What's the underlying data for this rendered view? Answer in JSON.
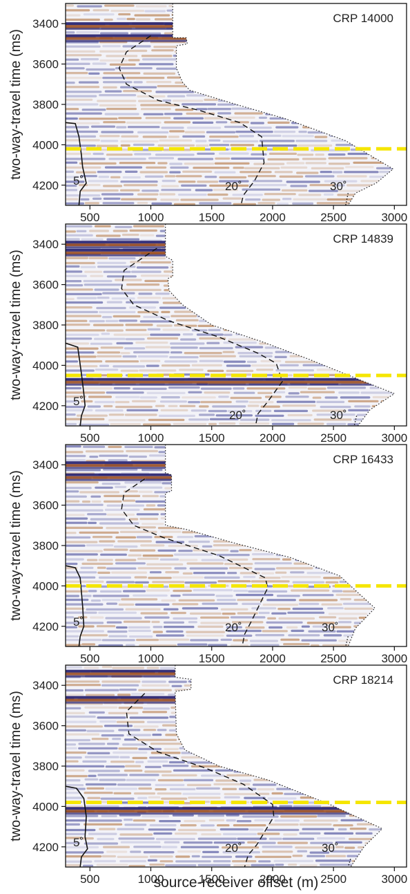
{
  "figure": {
    "xlabel": "source-receiver offset (m)"
  },
  "chart_data": [
    {
      "type": "heatmap",
      "title": "CRP 14000",
      "ylabel": "two-way-travel time (ms)",
      "xlim": [
        300,
        3100
      ],
      "ylim": [
        3300,
        4300
      ],
      "xticks": [
        500,
        1000,
        1500,
        2000,
        2500,
        3000
      ],
      "yticks": [
        3400,
        3600,
        3800,
        4000,
        4200
      ],
      "reference_time_ms": 4020,
      "strong_reflector_times_ms": [
        3410,
        3470
      ],
      "angle_labels": [
        "5˚",
        "20˚",
        "30˚"
      ],
      "data_boundary": [
        [
          1180,
          3300
        ],
        [
          1180,
          3470
        ],
        [
          1290,
          3470
        ],
        [
          1300,
          3500
        ],
        [
          1210,
          3510
        ],
        [
          1210,
          3620
        ],
        [
          1260,
          3690
        ],
        [
          1320,
          3730
        ],
        [
          1700,
          3800
        ],
        [
          2100,
          3870
        ],
        [
          2600,
          3980
        ],
        [
          2990,
          4120
        ],
        [
          2850,
          4190
        ],
        [
          2680,
          4240
        ],
        [
          2620,
          4300
        ]
      ],
      "angle_5_curve": [
        [
          300,
          3890
        ],
        [
          380,
          3895
        ],
        [
          410,
          3960
        ],
        [
          430,
          4050
        ],
        [
          440,
          4110
        ],
        [
          470,
          4190
        ],
        [
          420,
          4230
        ],
        [
          410,
          4300
        ]
      ],
      "angle_20_curve": [
        [
          1000,
          3460
        ],
        [
          800,
          3540
        ],
        [
          740,
          3620
        ],
        [
          800,
          3700
        ],
        [
          1060,
          3780
        ],
        [
          1400,
          3830
        ],
        [
          1730,
          3890
        ],
        [
          1910,
          3960
        ],
        [
          1930,
          4090
        ],
        [
          1850,
          4180
        ],
        [
          1760,
          4250
        ],
        [
          1740,
          4300
        ]
      ],
      "angle_30_curve": [
        [
          2620,
          4240
        ],
        [
          2600,
          4300
        ]
      ]
    },
    {
      "type": "heatmap",
      "title": "CRP 14839",
      "ylabel": "two-way-travel time (ms)",
      "xlim": [
        300,
        3100
      ],
      "ylim": [
        3300,
        4300
      ],
      "xticks": [
        500,
        1000,
        1500,
        2000,
        2500,
        3000
      ],
      "yticks": [
        3400,
        3600,
        3800,
        4000,
        4200
      ],
      "reference_time_ms": 4050,
      "strong_reflector_times_ms": [
        3400,
        3440,
        4080
      ],
      "angle_labels": [
        "5˚",
        "20˚",
        "30˚"
      ],
      "data_boundary": [
        [
          1120,
          3300
        ],
        [
          1120,
          3460
        ],
        [
          1180,
          3480
        ],
        [
          1180,
          3560
        ],
        [
          1140,
          3570
        ],
        [
          1150,
          3630
        ],
        [
          1260,
          3700
        ],
        [
          1500,
          3800
        ],
        [
          1900,
          3880
        ],
        [
          2300,
          3970
        ],
        [
          2750,
          4080
        ],
        [
          3000,
          4140
        ],
        [
          2800,
          4220
        ],
        [
          2700,
          4300
        ]
      ],
      "angle_5_curve": [
        [
          300,
          3890
        ],
        [
          400,
          3910
        ],
        [
          430,
          4040
        ],
        [
          450,
          4140
        ],
        [
          460,
          4200
        ],
        [
          430,
          4250
        ],
        [
          420,
          4300
        ]
      ],
      "angle_20_curve": [
        [
          1050,
          3420
        ],
        [
          780,
          3530
        ],
        [
          760,
          3620
        ],
        [
          860,
          3700
        ],
        [
          1150,
          3780
        ],
        [
          1560,
          3860
        ],
        [
          1880,
          3940
        ],
        [
          2030,
          3990
        ],
        [
          2080,
          4080
        ],
        [
          1960,
          4180
        ],
        [
          1880,
          4240
        ],
        [
          1860,
          4300
        ]
      ],
      "angle_30_curve": [
        [
          2690,
          4250
        ],
        [
          2670,
          4300
        ]
      ]
    },
    {
      "type": "heatmap",
      "title": "CRP 16433",
      "ylabel": "two-way-travel time (ms)",
      "xlim": [
        300,
        3100
      ],
      "ylim": [
        3300,
        4300
      ],
      "xticks": [
        500,
        1000,
        1500,
        2000,
        2500,
        3000
      ],
      "yticks": [
        3400,
        3600,
        3800,
        4000,
        4200
      ],
      "reference_time_ms": 4000,
      "strong_reflector_times_ms": [
        3400,
        3460
      ],
      "angle_labels": [
        "5˚",
        "20˚",
        "30˚"
      ],
      "data_boundary": [
        [
          1120,
          3300
        ],
        [
          1120,
          3440
        ],
        [
          1170,
          3450
        ],
        [
          1170,
          3530
        ],
        [
          1120,
          3540
        ],
        [
          1120,
          3700
        ],
        [
          1290,
          3720
        ],
        [
          1700,
          3790
        ],
        [
          2150,
          3860
        ],
        [
          2550,
          3950
        ],
        [
          2840,
          4110
        ],
        [
          2680,
          4210
        ],
        [
          2620,
          4300
        ]
      ],
      "angle_5_curve": [
        [
          300,
          3900
        ],
        [
          380,
          3910
        ],
        [
          420,
          3960
        ],
        [
          440,
          4100
        ],
        [
          450,
          4200
        ],
        [
          420,
          4250
        ],
        [
          410,
          4300
        ]
      ],
      "angle_20_curve": [
        [
          950,
          3470
        ],
        [
          780,
          3540
        ],
        [
          760,
          3620
        ],
        [
          860,
          3700
        ],
        [
          1100,
          3760
        ],
        [
          1560,
          3850
        ],
        [
          1940,
          3960
        ],
        [
          1960,
          4010
        ],
        [
          1830,
          4170
        ],
        [
          1770,
          4240
        ],
        [
          1750,
          4300
        ]
      ],
      "angle_30_curve": [
        [
          2620,
          4250
        ],
        [
          2600,
          4300
        ]
      ]
    },
    {
      "type": "heatmap",
      "title": "CRP 18214",
      "ylabel": "two-way-travel time (ms)",
      "xlim": [
        300,
        3100
      ],
      "ylim": [
        3300,
        4300
      ],
      "xticks": [
        500,
        1000,
        1500,
        2000,
        2500,
        3000
      ],
      "yticks": [
        3400,
        3600,
        3800,
        4000,
        4200
      ],
      "reference_time_ms": 3980,
      "strong_reflector_times_ms": [
        3340,
        3470,
        4020
      ],
      "angle_labels": [
        "5˚",
        "20˚",
        "30˚"
      ],
      "data_boundary": [
        [
          1200,
          3300
        ],
        [
          1200,
          3360
        ],
        [
          1330,
          3370
        ],
        [
          1330,
          3420
        ],
        [
          1200,
          3430
        ],
        [
          1210,
          3640
        ],
        [
          1280,
          3720
        ],
        [
          1560,
          3800
        ],
        [
          1970,
          3870
        ],
        [
          2470,
          3990
        ],
        [
          2900,
          4110
        ],
        [
          2750,
          4200
        ],
        [
          2640,
          4300
        ]
      ],
      "angle_5_curve": [
        [
          300,
          3900
        ],
        [
          390,
          3910
        ],
        [
          450,
          3960
        ],
        [
          470,
          4050
        ],
        [
          460,
          4150
        ],
        [
          480,
          4210
        ],
        [
          430,
          4250
        ],
        [
          420,
          4300
        ]
      ],
      "angle_20_curve": [
        [
          950,
          3440
        ],
        [
          800,
          3530
        ],
        [
          820,
          3640
        ],
        [
          1060,
          3730
        ],
        [
          1450,
          3810
        ],
        [
          1760,
          3890
        ],
        [
          2000,
          3990
        ],
        [
          2010,
          4050
        ],
        [
          1870,
          4190
        ],
        [
          1800,
          4240
        ],
        [
          1770,
          4300
        ]
      ],
      "angle_30_curve": [
        [
          2640,
          4260
        ],
        [
          2620,
          4300
        ]
      ]
    }
  ]
}
